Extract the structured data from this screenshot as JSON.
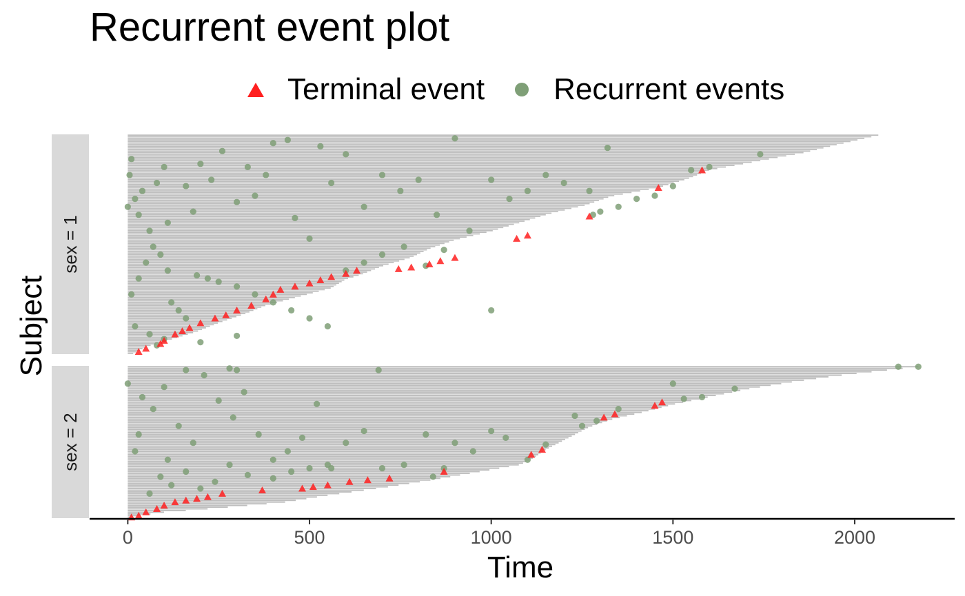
{
  "chart_data": {
    "type": "scatter",
    "title": "Recurrent event plot",
    "xlabel": "Time",
    "ylabel": "Subject",
    "xlim": [
      -105,
      2275
    ],
    "x_ticks": [
      0,
      500,
      1000,
      1500,
      2000
    ],
    "grid": false,
    "legend": {
      "position": "top",
      "entries": [
        {
          "name": "Terminal event",
          "shape": "triangle",
          "color": "#ff2020"
        },
        {
          "name": "Recurrent events",
          "shape": "circle",
          "color": "#7f9f77"
        }
      ]
    },
    "colors": {
      "follow_up_bar": "#bebebe",
      "strip": "#d9d9d9",
      "terminal": "#ff2020",
      "recurrent": "#7f9f77"
    },
    "panels": [
      {
        "label": "sex = 1",
        "n_subjects": 138,
        "follow_up_profile": [
          [
            0,
            2065
          ],
          [
            0.04,
            1960
          ],
          [
            0.08,
            1860
          ],
          [
            0.12,
            1730
          ],
          [
            0.16,
            1600
          ],
          [
            0.2,
            1540
          ],
          [
            0.24,
            1460
          ],
          [
            0.28,
            1330
          ],
          [
            0.32,
            1260
          ],
          [
            0.36,
            1160
          ],
          [
            0.4,
            1080
          ],
          [
            0.44,
            1000
          ],
          [
            0.48,
            900
          ],
          [
            0.52,
            830
          ],
          [
            0.56,
            780
          ],
          [
            0.6,
            700
          ],
          [
            0.64,
            640
          ],
          [
            0.66,
            600
          ],
          [
            0.7,
            560
          ],
          [
            0.74,
            470
          ],
          [
            0.78,
            380
          ],
          [
            0.82,
            320
          ],
          [
            0.86,
            250
          ],
          [
            0.9,
            190
          ],
          [
            0.94,
            110
          ],
          [
            0.97,
            50
          ],
          [
            1,
            15
          ]
        ],
        "terminal_events": [
          [
            30,
            136
          ],
          [
            50,
            134
          ],
          [
            90,
            131
          ],
          [
            100,
            129
          ],
          [
            130,
            125
          ],
          [
            150,
            123
          ],
          [
            170,
            121
          ],
          [
            200,
            118
          ],
          [
            240,
            115
          ],
          [
            270,
            113
          ],
          [
            300,
            110
          ],
          [
            340,
            107
          ],
          [
            380,
            103
          ],
          [
            400,
            100
          ],
          [
            420,
            97
          ],
          [
            460,
            95
          ],
          [
            500,
            93
          ],
          [
            530,
            91
          ],
          [
            560,
            89
          ],
          [
            600,
            87
          ],
          [
            630,
            85
          ],
          [
            745,
            84
          ],
          [
            780,
            83
          ],
          [
            830,
            81
          ],
          [
            860,
            79
          ],
          [
            900,
            77
          ],
          [
            1070,
            65
          ],
          [
            1100,
            63
          ],
          [
            1270,
            51
          ],
          [
            1460,
            33
          ],
          [
            1580,
            22
          ]
        ],
        "recurrent_events": [
          [
            0,
            45
          ],
          [
            5,
            25
          ],
          [
            10,
            15
          ],
          [
            20,
            40
          ],
          [
            30,
            50
          ],
          [
            40,
            35
          ],
          [
            60,
            60
          ],
          [
            80,
            30
          ],
          [
            100,
            20
          ],
          [
            110,
            55
          ],
          [
            160,
            32
          ],
          [
            180,
            48
          ],
          [
            200,
            18
          ],
          [
            230,
            28
          ],
          [
            260,
            10
          ],
          [
            300,
            42
          ],
          [
            330,
            20
          ],
          [
            350,
            38
          ],
          [
            380,
            25
          ],
          [
            400,
            5
          ],
          [
            440,
            3
          ],
          [
            460,
            52
          ],
          [
            500,
            65
          ],
          [
            530,
            7
          ],
          [
            560,
            30
          ],
          [
            600,
            12
          ],
          [
            650,
            45
          ],
          [
            700,
            25
          ],
          [
            750,
            35
          ],
          [
            800,
            28
          ],
          [
            850,
            50
          ],
          [
            900,
            2
          ],
          [
            940,
            60
          ],
          [
            1000,
            28
          ],
          [
            1050,
            40
          ],
          [
            1100,
            35
          ],
          [
            1150,
            25
          ],
          [
            1200,
            30
          ],
          [
            1270,
            35
          ],
          [
            1320,
            8
          ],
          [
            1350,
            45
          ],
          [
            1400,
            40
          ],
          [
            1450,
            38
          ],
          [
            1500,
            32
          ],
          [
            1550,
            22
          ],
          [
            1600,
            20
          ],
          [
            1740,
            12
          ],
          [
            190,
            88
          ],
          [
            220,
            90
          ],
          [
            250,
            92
          ],
          [
            300,
            95
          ],
          [
            350,
            100
          ],
          [
            400,
            105
          ],
          [
            450,
            110
          ],
          [
            500,
            115
          ],
          [
            550,
            120
          ],
          [
            120,
            105
          ],
          [
            140,
            110
          ],
          [
            160,
            115
          ],
          [
            10,
            100
          ],
          [
            30,
            90
          ],
          [
            50,
            80
          ],
          [
            70,
            70
          ],
          [
            90,
            75
          ],
          [
            110,
            85
          ],
          [
            600,
            85
          ],
          [
            650,
            80
          ],
          [
            700,
            75
          ],
          [
            760,
            70
          ],
          [
            820,
            82
          ],
          [
            870,
            72
          ],
          [
            1280,
            50
          ],
          [
            1300,
            48
          ],
          [
            1000,
            110
          ],
          [
            20,
            120
          ],
          [
            60,
            125
          ],
          [
            80,
            132
          ],
          [
            100,
            128
          ],
          [
            200,
            130
          ],
          [
            300,
            126
          ]
        ]
      },
      {
        "label": "sex = 2",
        "n_subjects": 90,
        "follow_up_profile": [
          [
            0,
            2175
          ],
          [
            0.03,
            2060
          ],
          [
            0.06,
            1950
          ],
          [
            0.1,
            1830
          ],
          [
            0.15,
            1700
          ],
          [
            0.2,
            1600
          ],
          [
            0.25,
            1500
          ],
          [
            0.3,
            1420
          ],
          [
            0.35,
            1330
          ],
          [
            0.4,
            1270
          ],
          [
            0.45,
            1230
          ],
          [
            0.5,
            1190
          ],
          [
            0.55,
            1150
          ],
          [
            0.6,
            1120
          ],
          [
            0.65,
            1080
          ],
          [
            0.7,
            960
          ],
          [
            0.75,
            840
          ],
          [
            0.8,
            710
          ],
          [
            0.85,
            560
          ],
          [
            0.9,
            430
          ],
          [
            0.94,
            240
          ],
          [
            0.97,
            80
          ],
          [
            1,
            10
          ]
        ],
        "terminal_events": [
          [
            10,
            89
          ],
          [
            30,
            88
          ],
          [
            50,
            86
          ],
          [
            80,
            84
          ],
          [
            100,
            82
          ],
          [
            130,
            80
          ],
          [
            160,
            79
          ],
          [
            190,
            78
          ],
          [
            220,
            77
          ],
          [
            260,
            75
          ],
          [
            370,
            73
          ],
          [
            480,
            72
          ],
          [
            510,
            71
          ],
          [
            550,
            70
          ],
          [
            610,
            68
          ],
          [
            660,
            67
          ],
          [
            720,
            66
          ],
          [
            870,
            62
          ],
          [
            1110,
            52
          ],
          [
            1140,
            49
          ],
          [
            1310,
            30
          ],
          [
            1340,
            28
          ],
          [
            1450,
            23
          ],
          [
            1470,
            21
          ]
        ],
        "recurrent_events": [
          [
            2120,
            0
          ],
          [
            2175,
            0
          ],
          [
            160,
            2
          ],
          [
            280,
            1
          ],
          [
            300,
            2
          ],
          [
            0,
            10
          ],
          [
            40,
            18
          ],
          [
            70,
            25
          ],
          [
            100,
            12
          ],
          [
            140,
            35
          ],
          [
            180,
            45
          ],
          [
            210,
            5
          ],
          [
            250,
            20
          ],
          [
            290,
            30
          ],
          [
            320,
            15
          ],
          [
            360,
            40
          ],
          [
            400,
            55
          ],
          [
            440,
            50
          ],
          [
            480,
            42
          ],
          [
            520,
            22
          ],
          [
            560,
            60
          ],
          [
            600,
            45
          ],
          [
            650,
            38
          ],
          [
            690,
            2
          ],
          [
            700,
            60
          ],
          [
            760,
            58
          ],
          [
            820,
            40
          ],
          [
            900,
            45
          ],
          [
            950,
            50
          ],
          [
            1000,
            38
          ],
          [
            1040,
            42
          ],
          [
            1100,
            55
          ],
          [
            1150,
            46
          ],
          [
            1230,
            29
          ],
          [
            1250,
            35
          ],
          [
            1290,
            32
          ],
          [
            1350,
            25
          ],
          [
            1500,
            10
          ],
          [
            1530,
            19
          ],
          [
            1580,
            18
          ],
          [
            1670,
            13
          ],
          [
            90,
            65
          ],
          [
            120,
            70
          ],
          [
            160,
            62
          ],
          [
            200,
            72
          ],
          [
            240,
            68
          ],
          [
            280,
            58
          ],
          [
            330,
            64
          ],
          [
            400,
            66
          ],
          [
            450,
            62
          ],
          [
            500,
            60
          ],
          [
            550,
            58
          ],
          [
            20,
            50
          ],
          [
            60,
            75
          ],
          [
            30,
            40
          ],
          [
            110,
            55
          ],
          [
            840,
            65
          ],
          [
            870,
            60
          ]
        ]
      }
    ]
  }
}
